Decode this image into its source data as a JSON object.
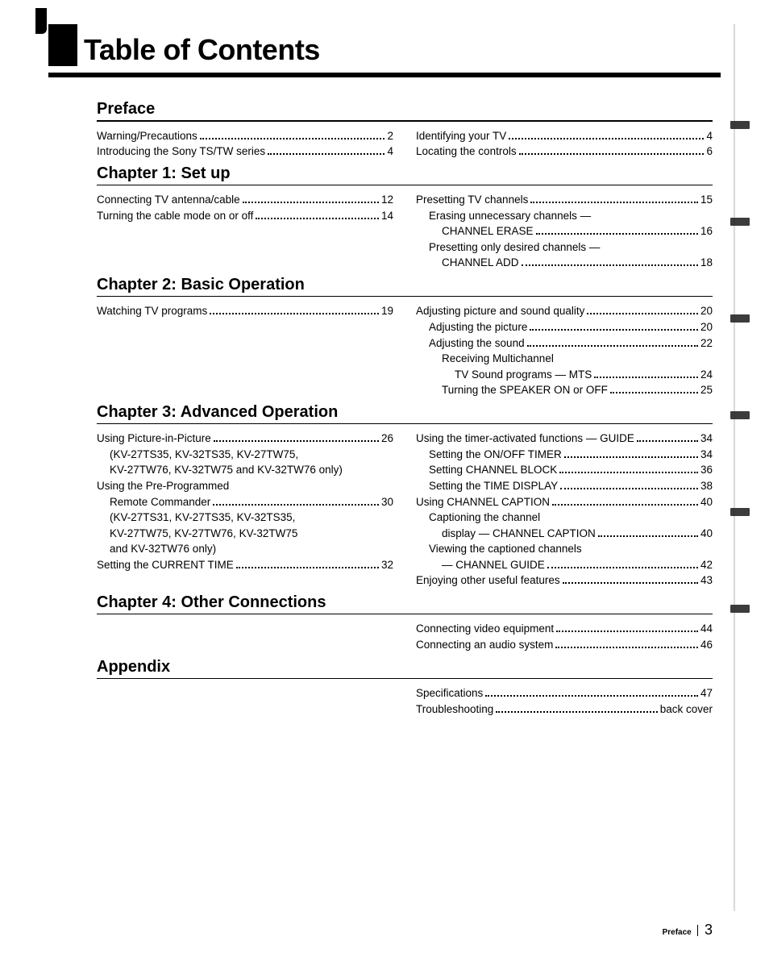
{
  "title": "Table of Contents",
  "footer": {
    "section": "Preface",
    "page": "3"
  },
  "sections": [
    {
      "heading": "Preface",
      "left": [
        {
          "label": "Warning/Precautions",
          "page": "2"
        },
        {
          "label": "Introducing the Sony TS/TW series",
          "page": "4"
        }
      ],
      "right": [
        {
          "label": "Identifying your TV",
          "page": "4"
        },
        {
          "label": "Locating the controls",
          "page": "6"
        }
      ]
    },
    {
      "heading": "Chapter 1: Set up",
      "left": [
        {
          "label": "Connecting TV antenna/cable",
          "page": "12"
        },
        {
          "label": "Turning the cable mode on or off",
          "page": "14"
        }
      ],
      "right": [
        {
          "label": "Presetting TV channels",
          "page": "15"
        },
        {
          "plain": "Erasing unnecessary channels —",
          "indent": 1
        },
        {
          "label": "CHANNEL ERASE",
          "page": "16",
          "indent": 2
        },
        {
          "plain": "Presetting only desired channels —",
          "indent": 1
        },
        {
          "label": "CHANNEL ADD",
          "page": "18",
          "indent": 2
        }
      ]
    },
    {
      "heading": "Chapter 2: Basic Operation",
      "left": [
        {
          "label": "Watching TV programs",
          "page": "19"
        }
      ],
      "right": [
        {
          "label": "Adjusting picture and sound quality",
          "page": "20"
        },
        {
          "label": "Adjusting the picture",
          "page": "20",
          "indent": 1
        },
        {
          "label": "Adjusting the sound",
          "page": "22",
          "indent": 1
        },
        {
          "plain": "Receiving Multichannel",
          "indent": 2
        },
        {
          "label": "TV Sound programs — MTS",
          "page": "24",
          "indent": 3
        },
        {
          "label": "Turning the SPEAKER ON or OFF",
          "page": "25",
          "indent": 2
        }
      ]
    },
    {
      "heading": "Chapter 3: Advanced Operation",
      "left": [
        {
          "label": "Using Picture-in-Picture",
          "page": "26"
        },
        {
          "plain": "(KV-27TS35, KV-32TS35, KV-27TW75,",
          "indent": 1
        },
        {
          "plain": "KV-27TW76, KV-32TW75 and KV-32TW76 only)",
          "indent": 1
        },
        {
          "plain": "Using the Pre-Programmed"
        },
        {
          "label": "Remote Commander",
          "page": "30",
          "indent": 1
        },
        {
          "plain": "(KV-27TS31, KV-27TS35, KV-32TS35,",
          "indent": 1
        },
        {
          "plain": "KV-27TW75, KV-27TW76, KV-32TW75",
          "indent": 1
        },
        {
          "plain": "and KV-32TW76 only)",
          "indent": 1
        },
        {
          "label": "Setting the CURRENT TIME",
          "page": "32"
        }
      ],
      "right": [
        {
          "label": "Using the timer-activated functions — GUIDE",
          "page": "34"
        },
        {
          "label": "Setting the ON/OFF TIMER",
          "page": "34",
          "indent": 1
        },
        {
          "label": "Setting CHANNEL BLOCK",
          "page": "36",
          "indent": 1
        },
        {
          "label": "Setting the TIME DISPLAY",
          "page": "38",
          "indent": 1
        },
        {
          "label": "Using CHANNEL CAPTION",
          "page": "40"
        },
        {
          "plain": "Captioning the channel",
          "indent": 1
        },
        {
          "label": "display — CHANNEL CAPTION",
          "page": "40",
          "indent": 2
        },
        {
          "plain": "Viewing the captioned channels",
          "indent": 1
        },
        {
          "label": "— CHANNEL GUIDE",
          "page": "42",
          "indent": 2
        },
        {
          "label": "Enjoying other useful features",
          "page": "43"
        }
      ]
    },
    {
      "heading": "Chapter 4: Other Connections",
      "left": [],
      "right": [
        {
          "label": "Connecting video equipment",
          "page": "44"
        },
        {
          "label": "Connecting an audio system",
          "page": "46"
        }
      ]
    },
    {
      "heading": "Appendix",
      "left": [],
      "right": [
        {
          "label": "Specifications",
          "page": "47",
          "spaced": true
        },
        {
          "label": "Troubleshooting",
          "page": "back cover",
          "spaced": true
        }
      ]
    }
  ],
  "edge_tabs": [
    {
      "height": 10
    },
    {
      "height": 10
    },
    {
      "height": 10
    },
    {
      "height": 10
    },
    {
      "height": 10
    },
    {
      "height": 10
    }
  ]
}
